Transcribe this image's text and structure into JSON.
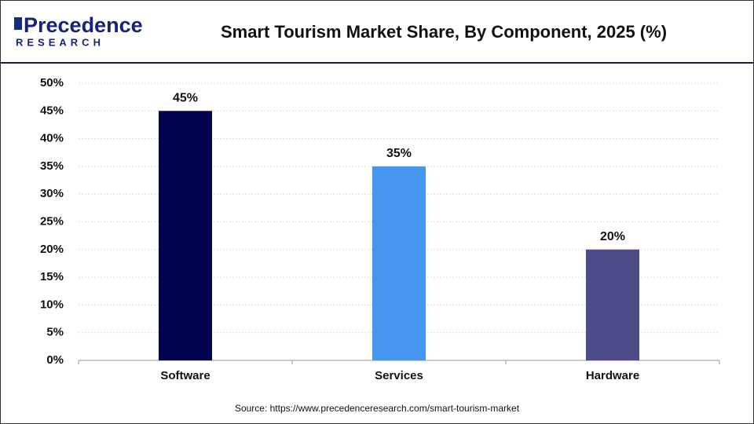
{
  "logo": {
    "name": "Precedence",
    "sub": "RESEARCH"
  },
  "chart_data": {
    "type": "bar",
    "title": "Smart Tourism Market Share, By Component, 2025 (%)",
    "categories": [
      "Software",
      "Services",
      "Hardware"
    ],
    "values": [
      45,
      35,
      20
    ],
    "value_labels": [
      "45%",
      "35%",
      "20%"
    ],
    "colors": [
      "#03034f",
      "#4596f1",
      "#4c4d88"
    ],
    "ylim": [
      0,
      50
    ],
    "yticks": [
      {
        "value": 0,
        "label": "0%"
      },
      {
        "value": 5,
        "label": "5%"
      },
      {
        "value": 10,
        "label": "10%"
      },
      {
        "value": 15,
        "label": "15%"
      },
      {
        "value": 20,
        "label": "20%"
      },
      {
        "value": 25,
        "label": "25%"
      },
      {
        "value": 30,
        "label": "30%"
      },
      {
        "value": 35,
        "label": "35%"
      },
      {
        "value": 40,
        "label": "40%"
      },
      {
        "value": 45,
        "label": "45%"
      },
      {
        "value": 50,
        "label": "50%"
      }
    ],
    "grid": true,
    "source": "Source: https://www.precedenceresearch.com/smart-tourism-market"
  }
}
